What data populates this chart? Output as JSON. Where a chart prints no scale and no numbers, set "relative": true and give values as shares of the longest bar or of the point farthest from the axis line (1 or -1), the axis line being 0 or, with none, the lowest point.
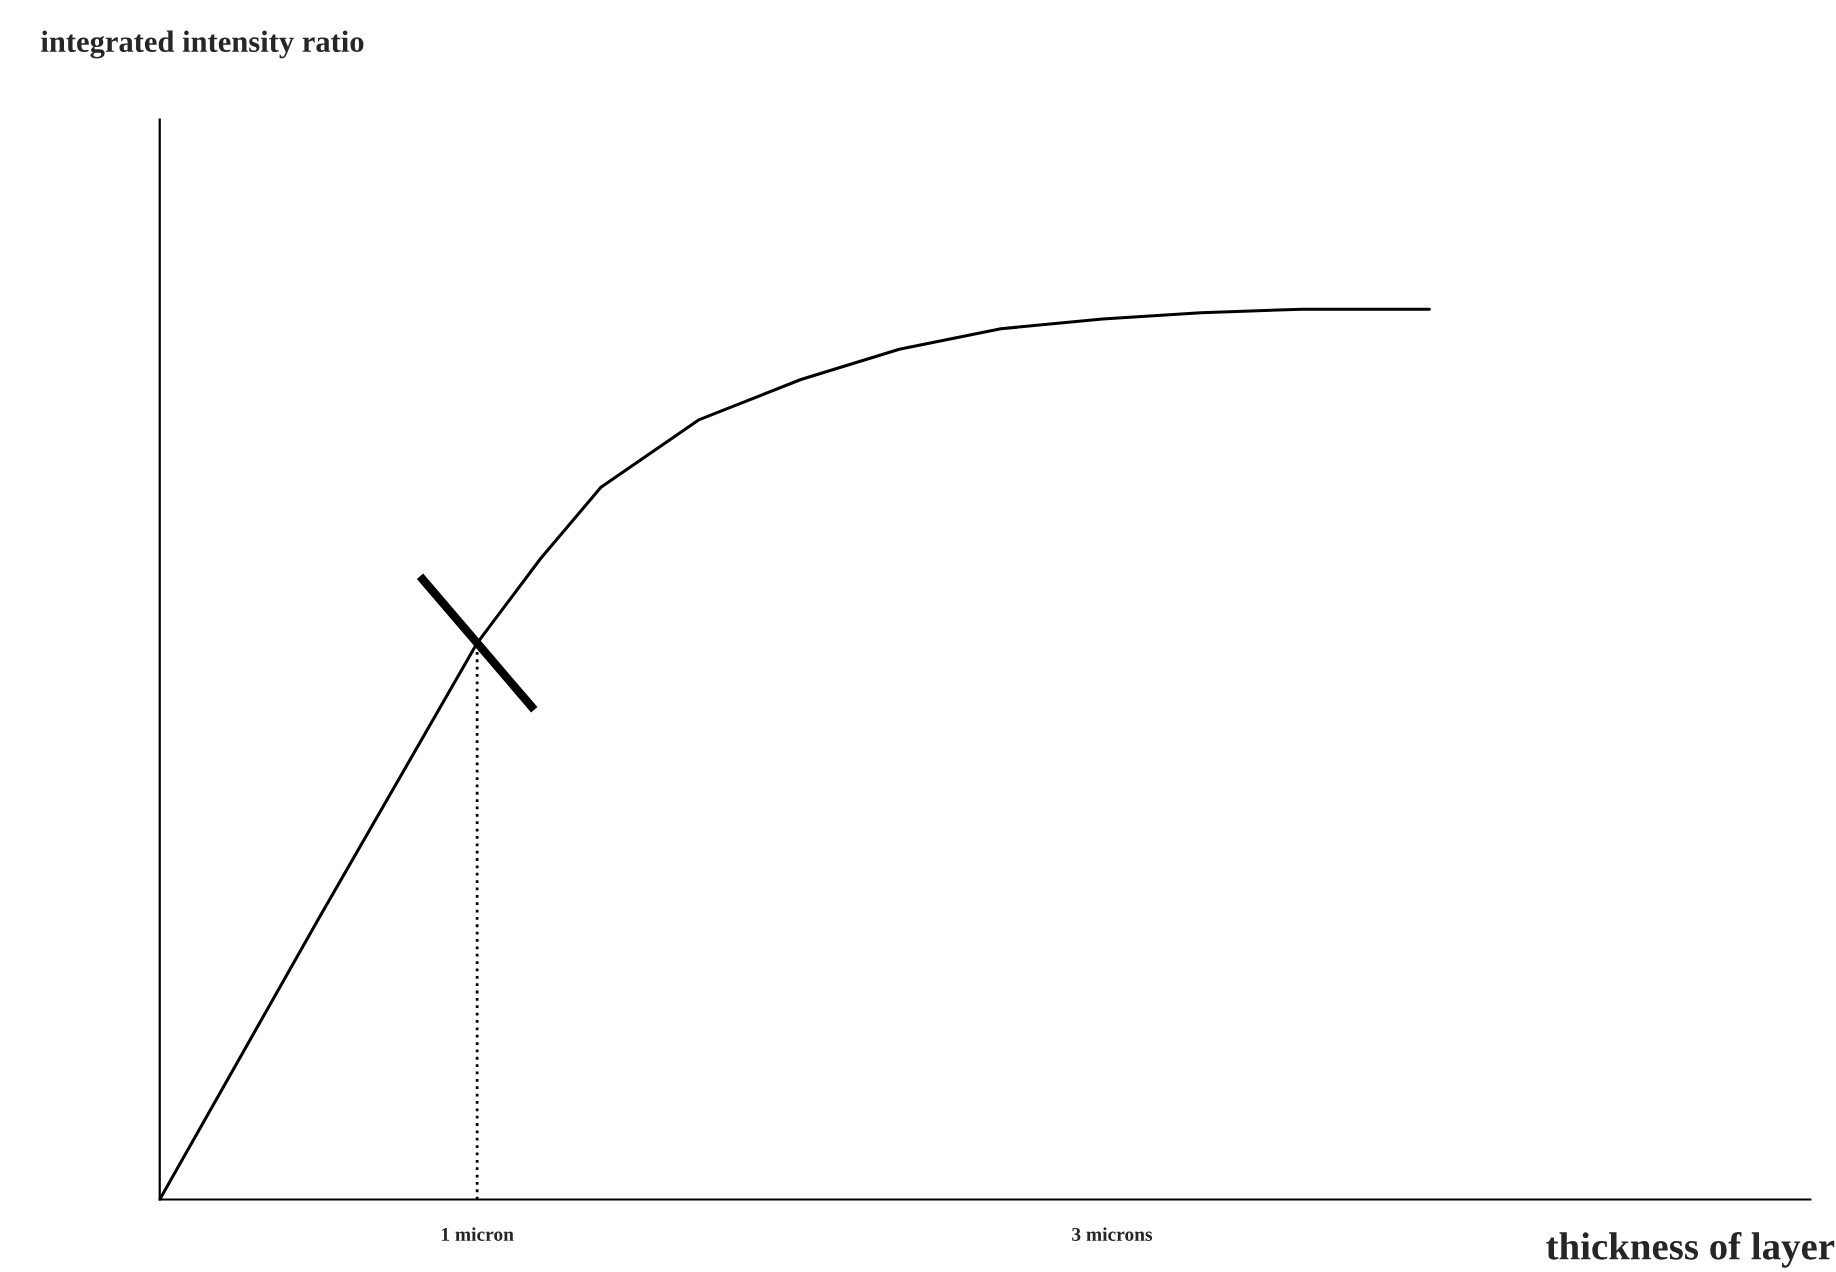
{
  "chart_data": {
    "type": "line",
    "xlabel": "thickness of layer",
    "annotations": [
      "integrated intensity ratio"
    ],
    "relative": true,
    "xlim": [
      0,
      5.2
    ],
    "xticks": [
      {
        "value": 1,
        "label": "1 micron"
      },
      {
        "value": 3,
        "label": "3 microns"
      }
    ],
    "tick_labels": "x",
    "grid": false,
    "legend": false,
    "marker": "none",
    "line_style": "solid",
    "series": [
      {
        "color": "#000000",
        "x": [
          0,
          0.5,
          1,
          1.2,
          1.39,
          1.7,
          2.02,
          2.33,
          2.65,
          2.97,
          3.28,
          3.6,
          4.0
        ],
        "values": [
          0,
          0.315,
          0.625,
          0.72,
          0.8,
          0.876,
          0.921,
          0.955,
          0.978,
          0.989,
          0.996,
          1,
          1
        ]
      }
    ],
    "ref_lines": [
      {
        "axis": "x",
        "value": 1,
        "label": null,
        "color": "#000000",
        "line_style": "dotted"
      }
    ]
  }
}
